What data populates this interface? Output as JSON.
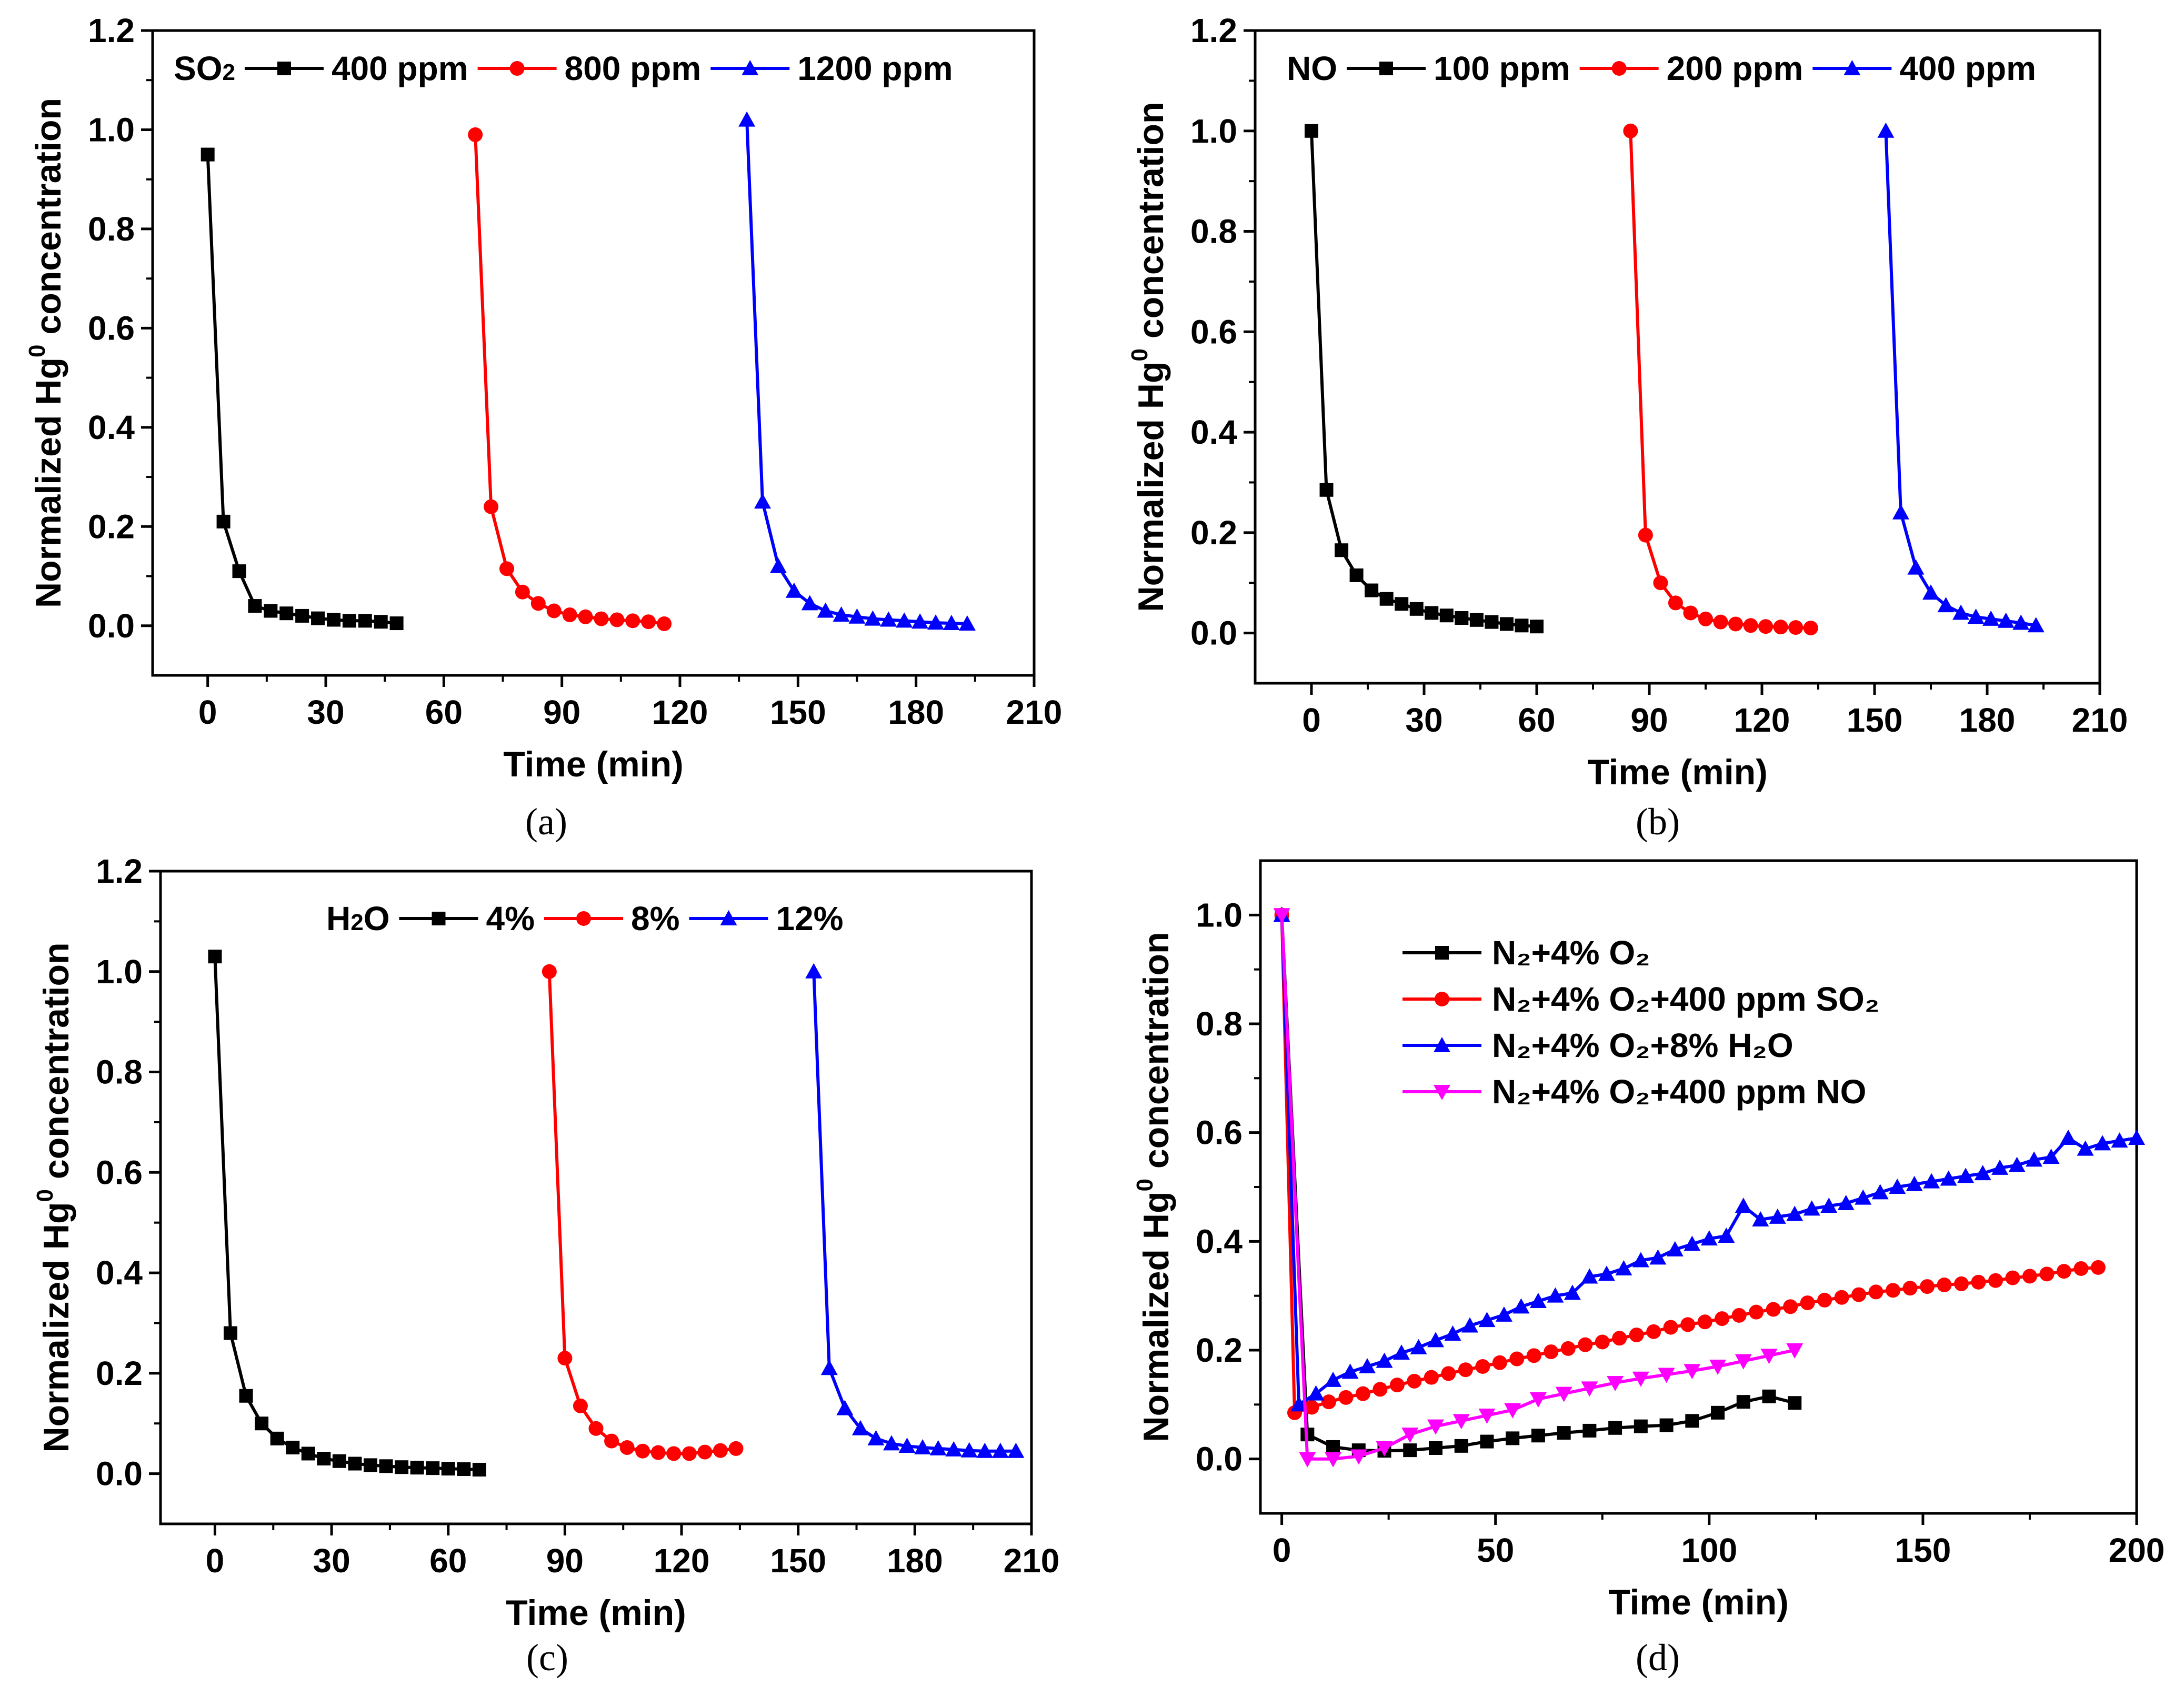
{
  "chart_data": [
    {
      "panel": "a",
      "type": "line",
      "caption": "(a)",
      "xlabel": "Time (min)",
      "ylabel": "Normalized Hg",
      "ylabel_sup": "0",
      "ylabel_tail": " concentration",
      "xlim": [
        -14,
        210
      ],
      "ylim": [
        -0.1,
        1.2
      ],
      "xticks": [
        0,
        30,
        60,
        90,
        120,
        150,
        180,
        210
      ],
      "xtick_labels": [
        "0",
        "30",
        "60",
        "90",
        "120",
        "150",
        "180",
        "210"
      ],
      "yticks": [
        0.0,
        0.2,
        0.4,
        0.6,
        0.8,
        1.0,
        1.2
      ],
      "ytick_labels": [
        "0.0",
        "0.2",
        "0.4",
        "0.6",
        "0.8",
        "1.0",
        "1.2"
      ],
      "legend_title": "SO",
      "legend_title_sub": "2",
      "legend_layout": "row",
      "series": [
        {
          "name": "400 ppm",
          "color": "#000000",
          "marker": "square",
          "x": [
            0,
            4,
            8,
            12,
            16,
            20,
            24,
            28,
            32,
            36,
            40,
            44,
            48
          ],
          "y": [
            0.95,
            0.21,
            0.11,
            0.04,
            0.03,
            0.025,
            0.02,
            0.015,
            0.012,
            0.01,
            0.01,
            0.008,
            0.005
          ]
        },
        {
          "name": "800 ppm",
          "color": "#ff0000",
          "marker": "circle",
          "x": [
            68,
            72,
            76,
            80,
            84,
            88,
            92,
            96,
            100,
            104,
            108,
            112,
            116
          ],
          "y": [
            0.99,
            0.24,
            0.115,
            0.068,
            0.045,
            0.03,
            0.022,
            0.018,
            0.014,
            0.012,
            0.01,
            0.008,
            0.004
          ]
        },
        {
          "name": "1200 ppm",
          "color": "#0000ff",
          "marker": "triangle",
          "x": [
            137,
            141,
            145,
            149,
            153,
            157,
            161,
            165,
            169,
            173,
            177,
            181,
            185,
            189,
            193
          ],
          "y": [
            1.02,
            0.25,
            0.12,
            0.07,
            0.045,
            0.03,
            0.022,
            0.018,
            0.014,
            0.012,
            0.01,
            0.008,
            0.006,
            0.005,
            0.004
          ]
        }
      ]
    },
    {
      "panel": "b",
      "type": "line",
      "caption": "(b)",
      "xlabel": "Time (min)",
      "ylabel": "Normalized Hg",
      "ylabel_sup": "0",
      "ylabel_tail": " concentration",
      "xlim": [
        -15,
        210
      ],
      "ylim": [
        -0.1,
        1.2
      ],
      "xticks": [
        0,
        30,
        60,
        90,
        120,
        150,
        180,
        210
      ],
      "xtick_labels": [
        "0",
        "30",
        "60",
        "90",
        "120",
        "150",
        "180",
        "210"
      ],
      "yticks": [
        0.0,
        0.2,
        0.4,
        0.6,
        0.8,
        1.0,
        1.2
      ],
      "ytick_labels": [
        "0.0",
        "0.2",
        "0.4",
        "0.6",
        "0.8",
        "1.0",
        "1.2"
      ],
      "legend_title": "NO",
      "legend_title_sub": "",
      "legend_layout": "row",
      "series": [
        {
          "name": "100 ppm",
          "color": "#000000",
          "marker": "square",
          "x": [
            0,
            4,
            8,
            12,
            16,
            20,
            24,
            28,
            32,
            36,
            40,
            44,
            48,
            52,
            56,
            60
          ],
          "y": [
            1.0,
            0.285,
            0.165,
            0.115,
            0.085,
            0.068,
            0.058,
            0.048,
            0.04,
            0.035,
            0.03,
            0.026,
            0.022,
            0.018,
            0.015,
            0.013
          ]
        },
        {
          "name": "200 ppm",
          "color": "#ff0000",
          "marker": "circle",
          "x": [
            85,
            89,
            93,
            97,
            101,
            105,
            109,
            113,
            117,
            121,
            125,
            129,
            133
          ],
          "y": [
            1.0,
            0.195,
            0.1,
            0.06,
            0.04,
            0.028,
            0.022,
            0.018,
            0.015,
            0.013,
            0.012,
            0.011,
            0.01
          ]
        },
        {
          "name": "400 ppm",
          "color": "#0000ff",
          "marker": "triangle",
          "x": [
            153,
            157,
            161,
            165,
            169,
            173,
            177,
            181,
            185,
            189,
            193
          ],
          "y": [
            1.0,
            0.24,
            0.13,
            0.08,
            0.055,
            0.04,
            0.032,
            0.028,
            0.024,
            0.02,
            0.015
          ]
        }
      ]
    },
    {
      "panel": "c",
      "type": "line",
      "caption": "(c)",
      "xlabel": "Time (min)",
      "ylabel": "Normalized Hg",
      "ylabel_sup": "0",
      "ylabel_tail": " concentration",
      "xlim": [
        -14,
        210
      ],
      "ylim": [
        -0.1,
        1.2
      ],
      "xticks": [
        0,
        30,
        60,
        90,
        120,
        150,
        180,
        210
      ],
      "xtick_labels": [
        "0",
        "30",
        "60",
        "90",
        "120",
        "150",
        "180",
        "210"
      ],
      "yticks": [
        0.0,
        0.2,
        0.4,
        0.6,
        0.8,
        1.0,
        1.2
      ],
      "ytick_labels": [
        "0.0",
        "0.2",
        "0.4",
        "0.6",
        "0.8",
        "1.0",
        "1.2"
      ],
      "legend_title": "H",
      "legend_title_sub": "2",
      "legend_title_tail": "O",
      "legend_layout": "row",
      "series": [
        {
          "name": "4%",
          "color": "#000000",
          "marker": "square",
          "x": [
            0,
            4,
            8,
            12,
            16,
            20,
            24,
            28,
            32,
            36,
            40,
            44,
            48,
            52,
            56,
            60,
            64,
            68
          ],
          "y": [
            1.03,
            0.28,
            0.155,
            0.1,
            0.07,
            0.052,
            0.04,
            0.03,
            0.025,
            0.02,
            0.017,
            0.015,
            0.013,
            0.012,
            0.011,
            0.01,
            0.009,
            0.008
          ]
        },
        {
          "name": "8%",
          "color": "#ff0000",
          "marker": "circle",
          "x": [
            86,
            90,
            94,
            98,
            102,
            106,
            110,
            114,
            118,
            122,
            126,
            130,
            134
          ],
          "y": [
            1.0,
            0.23,
            0.135,
            0.09,
            0.065,
            0.052,
            0.045,
            0.042,
            0.04,
            0.04,
            0.043,
            0.046,
            0.05
          ]
        },
        {
          "name": "12%",
          "color": "#0000ff",
          "marker": "triangle",
          "x": [
            154,
            158,
            162,
            166,
            170,
            174,
            178,
            182,
            186,
            190,
            194,
            198,
            202,
            206
          ],
          "y": [
            1.0,
            0.21,
            0.13,
            0.09,
            0.07,
            0.06,
            0.055,
            0.052,
            0.05,
            0.048,
            0.046,
            0.045,
            0.045,
            0.045
          ]
        }
      ]
    },
    {
      "panel": "d",
      "type": "line",
      "caption": "(d)",
      "xlabel": "Time (min)",
      "ylabel": "Normalized Hg",
      "ylabel_sup": "0",
      "ylabel_tail": " concentration",
      "xlim": [
        -5,
        200
      ],
      "ylim": [
        -0.1,
        1.1
      ],
      "xticks": [
        0,
        50,
        100,
        150,
        200
      ],
      "xtick_labels": [
        "0",
        "50",
        "100",
        "150",
        "200"
      ],
      "yticks": [
        0.0,
        0.2,
        0.4,
        0.6,
        0.8,
        1.0
      ],
      "ytick_labels": [
        "0.0",
        "0.2",
        "0.4",
        "0.6",
        "0.8",
        "1.0"
      ],
      "legend_layout": "column",
      "series": [
        {
          "name": "N₂+4% O₂",
          "color": "#000000",
          "marker": "square",
          "x": [
            0,
            6,
            12,
            18,
            24,
            30,
            36,
            42,
            48,
            54,
            60,
            66,
            72,
            78,
            84,
            90,
            96,
            102,
            108,
            114,
            120
          ],
          "y": [
            1.0,
            0.045,
            0.022,
            0.016,
            0.015,
            0.016,
            0.02,
            0.024,
            0.032,
            0.038,
            0.043,
            0.048,
            0.052,
            0.057,
            0.06,
            0.062,
            0.07,
            0.085,
            0.105,
            0.115,
            0.103
          ]
        },
        {
          "name": "N₂+4% O₂+400 ppm SO₂",
          "color": "#ff0000",
          "marker": "circle",
          "x": [
            0,
            3,
            7,
            11,
            15,
            19,
            23,
            27,
            31,
            35,
            39,
            43,
            47,
            51,
            55,
            59,
            63,
            67,
            71,
            75,
            79,
            83,
            87,
            91,
            95,
            99,
            103,
            107,
            111,
            115,
            119,
            123,
            127,
            131,
            135,
            139,
            143,
            147,
            151,
            155,
            159,
            163,
            167,
            171,
            175,
            179,
            183,
            187,
            191
          ],
          "y": [
            1.0,
            0.085,
            0.095,
            0.105,
            0.113,
            0.12,
            0.128,
            0.136,
            0.143,
            0.15,
            0.157,
            0.164,
            0.17,
            0.177,
            0.184,
            0.19,
            0.197,
            0.203,
            0.21,
            0.215,
            0.222,
            0.228,
            0.234,
            0.242,
            0.247,
            0.252,
            0.258,
            0.264,
            0.27,
            0.275,
            0.28,
            0.287,
            0.292,
            0.297,
            0.302,
            0.307,
            0.31,
            0.314,
            0.317,
            0.32,
            0.322,
            0.325,
            0.328,
            0.333,
            0.336,
            0.34,
            0.345,
            0.35,
            0.352
          ]
        },
        {
          "name": "N₂+4% O₂+8% H₂O",
          "color": "#0000ff",
          "marker": "triangle",
          "x": [
            0,
            4,
            8,
            12,
            16,
            20,
            24,
            28,
            32,
            36,
            40,
            44,
            48,
            52,
            56,
            60,
            64,
            68,
            72,
            76,
            80,
            84,
            88,
            92,
            96,
            100,
            104,
            108,
            112,
            116,
            120,
            124,
            128,
            132,
            136,
            140,
            144,
            148,
            152,
            156,
            160,
            164,
            168,
            172,
            176,
            180,
            184,
            188,
            192,
            196,
            200
          ],
          "y": [
            1.0,
            0.1,
            0.12,
            0.145,
            0.16,
            0.17,
            0.18,
            0.195,
            0.205,
            0.218,
            0.23,
            0.245,
            0.255,
            0.265,
            0.28,
            0.29,
            0.3,
            0.305,
            0.335,
            0.34,
            0.35,
            0.365,
            0.37,
            0.385,
            0.395,
            0.405,
            0.41,
            0.465,
            0.44,
            0.445,
            0.45,
            0.46,
            0.465,
            0.47,
            0.48,
            0.49,
            0.5,
            0.505,
            0.51,
            0.515,
            0.52,
            0.525,
            0.535,
            0.54,
            0.55,
            0.555,
            0.59,
            0.57,
            0.58,
            0.585,
            0.59
          ]
        },
        {
          "name": "N₂+4% O₂+400 ppm NO",
          "color": "#ff00ff",
          "marker": "triangle-down",
          "x": [
            0,
            6,
            12,
            18,
            24,
            30,
            36,
            42,
            48,
            54,
            60,
            66,
            72,
            78,
            84,
            90,
            96,
            102,
            108,
            114,
            120
          ],
          "y": [
            1.0,
            0.0,
            0.0,
            0.005,
            0.02,
            0.045,
            0.06,
            0.07,
            0.08,
            0.09,
            0.11,
            0.12,
            0.13,
            0.14,
            0.148,
            0.155,
            0.162,
            0.17,
            0.18,
            0.19,
            0.2
          ]
        }
      ]
    }
  ]
}
